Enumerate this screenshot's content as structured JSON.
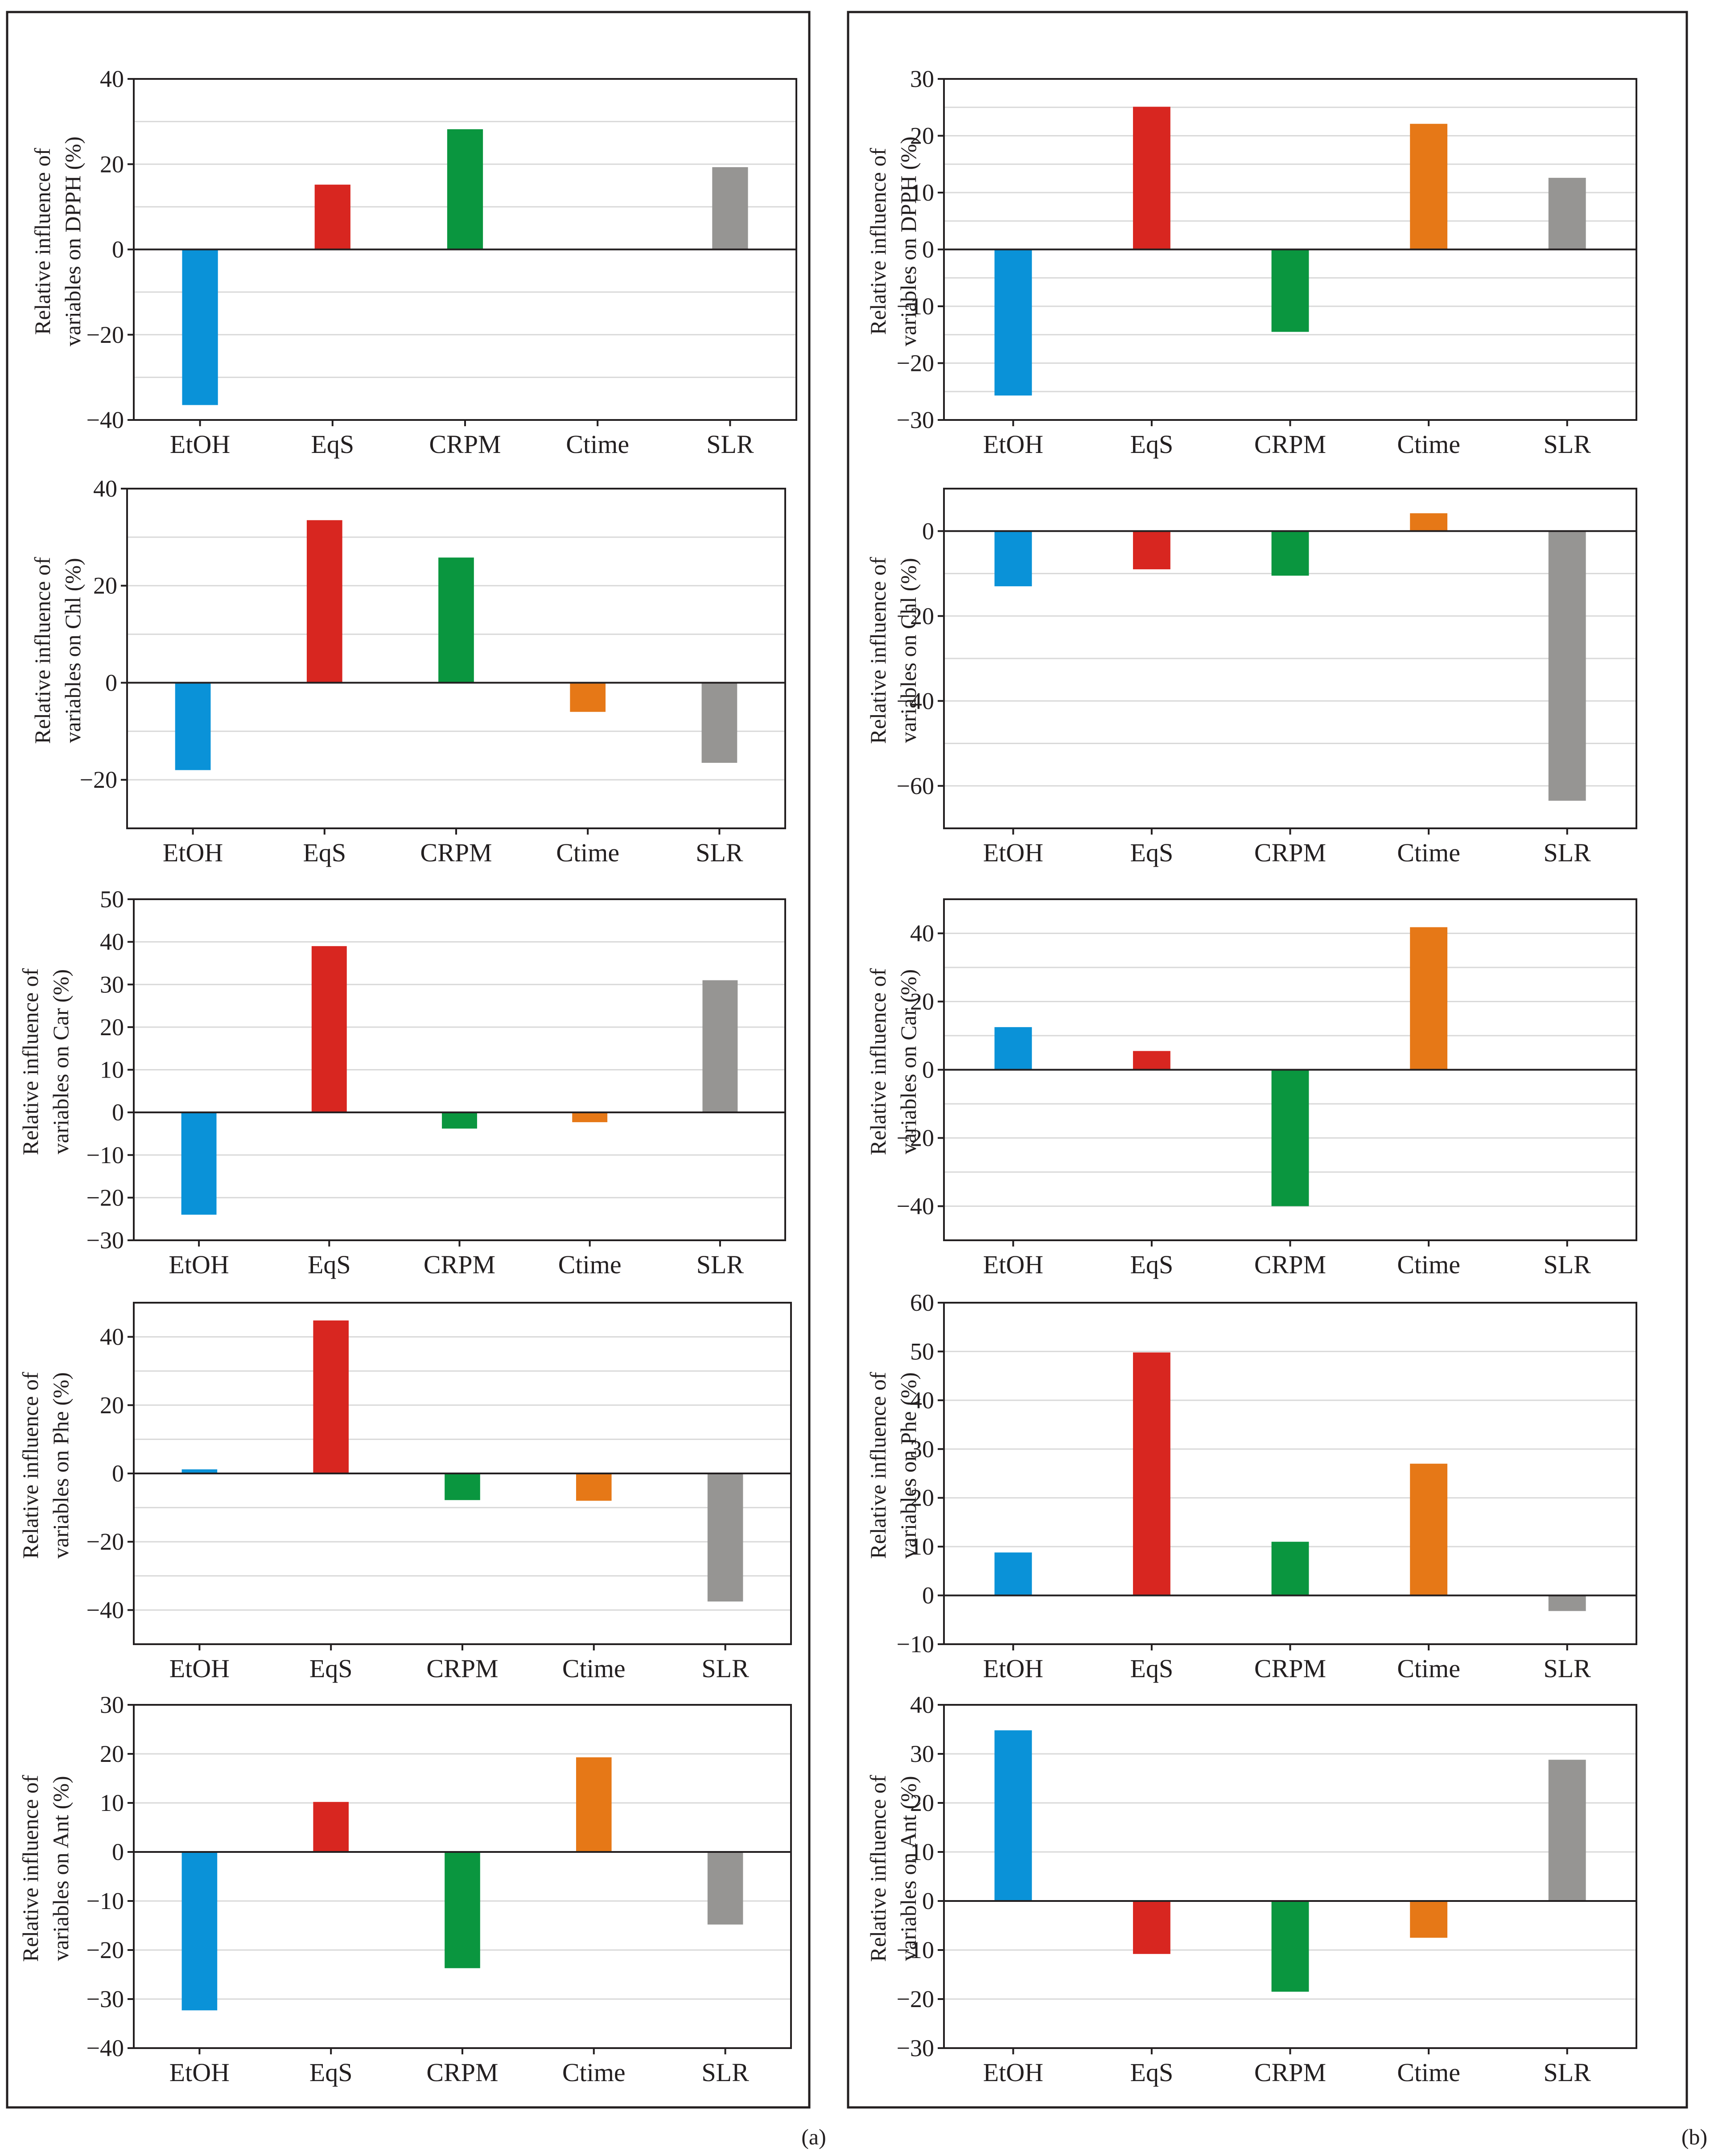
{
  "panels": [
    {
      "name": "a",
      "label": "(a)"
    },
    {
      "name": "b",
      "label": "(b)"
    }
  ],
  "colors": {
    "EtOH": "#0a92d8",
    "EqS": "#d82620",
    "CRPM": "#0a963f",
    "Ctime": "#e67817",
    "SLR": "#969593",
    "axis": "#231f20",
    "grid": "#d9d9d9",
    "frame": "#231f20"
  },
  "chart_data": [
    {
      "type": "bar",
      "panel": "a",
      "title": "",
      "ylabel_line1": "Relative influence of",
      "ylabel_line2": "variables  on DPPH (%)",
      "categories": [
        "EtOH",
        "EqS",
        "CRPM",
        "Ctime",
        "SLR"
      ],
      "values": [
        -36.5,
        15.2,
        28.2,
        0,
        19.3
      ],
      "ylim": [
        -40,
        40
      ],
      "ticks": [
        -40,
        -20,
        0,
        20,
        40
      ],
      "tick_labels": [
        "−40",
        "−20",
        "0",
        "20",
        "40"
      ],
      "grid_step": 10
    },
    {
      "type": "bar",
      "panel": "a",
      "title": "",
      "ylabel_line1": "Relative influence of",
      "ylabel_line2": "variables  on Chl (%)",
      "categories": [
        "EtOH",
        "EqS",
        "CRPM",
        "Ctime",
        "SLR"
      ],
      "values": [
        -18,
        33.5,
        25.8,
        -6,
        -16.5
      ],
      "ylim": [
        -30,
        40
      ],
      "ticks": [
        -20,
        0,
        20,
        40
      ],
      "tick_labels": [
        "−20",
        "0",
        "20",
        "40"
      ],
      "grid_step": 10
    },
    {
      "type": "bar",
      "panel": "a",
      "title": "",
      "ylabel_line1": "Relative influence of",
      "ylabel_line2": "variables  on Car (%)",
      "categories": [
        "EtOH",
        "EqS",
        "CRPM",
        "Ctime",
        "SLR"
      ],
      "values": [
        -24,
        39,
        -3.8,
        -2.3,
        31
      ],
      "ylim": [
        -30,
        50
      ],
      "ticks": [
        -30,
        -20,
        -10,
        0,
        10,
        20,
        30,
        40,
        50
      ],
      "tick_labels": [
        "−30",
        "−20",
        "−10",
        "0",
        "10",
        "20",
        "30",
        "40",
        "50"
      ],
      "grid_step": 10
    },
    {
      "type": "bar",
      "panel": "a",
      "title": "",
      "ylabel_line1": "Relative influence of",
      "ylabel_line2": "variables  on Phe (%)",
      "categories": [
        "EtOH",
        "EqS",
        "CRPM",
        "Ctime",
        "SLR"
      ],
      "values": [
        1.2,
        44.8,
        -7.8,
        -8,
        -37.5
      ],
      "ylim": [
        -50,
        50
      ],
      "ticks": [
        -40,
        -20,
        0,
        20,
        40
      ],
      "tick_labels": [
        "−40",
        "−20",
        "0",
        "20",
        "40"
      ],
      "grid_step": 10
    },
    {
      "type": "bar",
      "panel": "a",
      "title": "",
      "ylabel_line1": "Relative influence of",
      "ylabel_line2": "variables  on Ant (%)",
      "categories": [
        "EtOH",
        "EqS",
        "CRPM",
        "Ctime",
        "SLR"
      ],
      "values": [
        -32.3,
        10.2,
        -23.7,
        19.3,
        -14.8
      ],
      "ylim": [
        -40,
        30
      ],
      "ticks": [
        -40,
        -30,
        -20,
        -10,
        0,
        10,
        20,
        30
      ],
      "tick_labels": [
        "−40",
        "−30",
        "−20",
        "−10",
        "0",
        "10",
        "20",
        "30"
      ],
      "grid_step": 10
    },
    {
      "type": "bar",
      "panel": "b",
      "title": "",
      "ylabel_line1": "Relative influence of",
      "ylabel_line2": "variables  on DPPH (%)",
      "categories": [
        "EtOH",
        "EqS",
        "CRPM",
        "Ctime",
        "SLR"
      ],
      "values": [
        -25.7,
        25.1,
        -14.5,
        22.1,
        12.6
      ],
      "ylim": [
        -30,
        30
      ],
      "ticks": [
        -30,
        -20,
        -10,
        0,
        10,
        20,
        30
      ],
      "tick_labels": [
        "−30",
        "−20",
        "−10",
        "0",
        "10",
        "20",
        "30"
      ],
      "grid_step": 5
    },
    {
      "type": "bar",
      "panel": "b",
      "title": "",
      "ylabel_line1": "Relative influence of",
      "ylabel_line2": "variables  on Chl (%)",
      "categories": [
        "EtOH",
        "EqS",
        "CRPM",
        "Ctime",
        "SLR"
      ],
      "values": [
        -13,
        -9,
        -10.5,
        4.2,
        -63.5
      ],
      "ylim": [
        -70,
        10
      ],
      "ticks": [
        -60,
        -40,
        -20,
        0
      ],
      "tick_labels": [
        "−60",
        "−40",
        "−20",
        "0"
      ],
      "grid_step": 10
    },
    {
      "type": "bar",
      "panel": "b",
      "title": "",
      "ylabel_line1": "Relative influence of",
      "ylabel_line2": "variables  on Car (%)",
      "categories": [
        "EtOH",
        "EqS",
        "CRPM",
        "Ctime",
        "SLR"
      ],
      "values": [
        12.5,
        5.5,
        -40,
        41.8,
        0
      ],
      "ylim": [
        -50,
        50
      ],
      "ticks": [
        -40,
        -20,
        0,
        20,
        40
      ],
      "tick_labels": [
        "−40",
        "−20",
        "0",
        "20",
        "40"
      ],
      "grid_step": 10
    },
    {
      "type": "bar",
      "panel": "b",
      "title": "",
      "ylabel_line1": "Relative influence of",
      "ylabel_line2": "variables  on Phe (%)",
      "categories": [
        "EtOH",
        "EqS",
        "CRPM",
        "Ctime",
        "SLR"
      ],
      "values": [
        8.8,
        49.8,
        11,
        27,
        -3.2
      ],
      "ylim": [
        -10,
        60
      ],
      "ticks": [
        -10,
        0,
        10,
        20,
        30,
        40,
        50,
        60
      ],
      "tick_labels": [
        "−10",
        "0",
        "10",
        "20",
        "30",
        "40",
        "50",
        "60"
      ],
      "grid_step": 10
    },
    {
      "type": "bar",
      "panel": "b",
      "title": "",
      "ylabel_line1": "Relative influence of",
      "ylabel_line2": "variables  on Ant (%)",
      "categories": [
        "EtOH",
        "EqS",
        "CRPM",
        "Ctime",
        "SLR"
      ],
      "values": [
        34.8,
        -10.8,
        -18.5,
        -7.5,
        28.8
      ],
      "ylim": [
        -30,
        40
      ],
      "ticks": [
        -30,
        -20,
        -10,
        0,
        10,
        20,
        30,
        40
      ],
      "tick_labels": [
        "−30",
        "−20",
        "−10",
        "0",
        "10",
        "20",
        "30",
        "40"
      ],
      "grid_step": 10
    }
  ]
}
